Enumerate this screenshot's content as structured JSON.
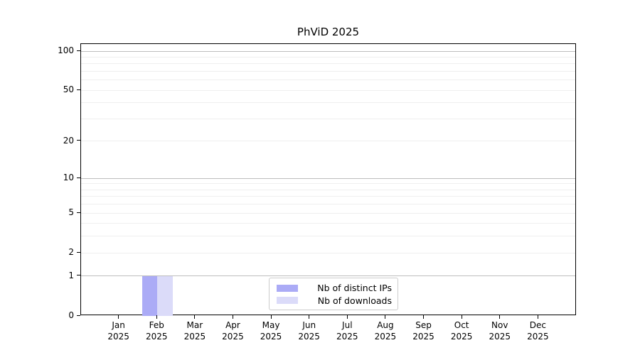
{
  "chart_data": {
    "type": "bar",
    "title": "PhViD 2025",
    "categories": [
      [
        "Jan",
        "2025"
      ],
      [
        "Feb",
        "2025"
      ],
      [
        "Mar",
        "2025"
      ],
      [
        "Apr",
        "2025"
      ],
      [
        "May",
        "2025"
      ],
      [
        "Jun",
        "2025"
      ],
      [
        "Jul",
        "2025"
      ],
      [
        "Aug",
        "2025"
      ],
      [
        "Sep",
        "2025"
      ],
      [
        "Oct",
        "2025"
      ],
      [
        "Nov",
        "2025"
      ],
      [
        "Dec",
        "2025"
      ]
    ],
    "series": [
      {
        "name": "Nb of distinct IPs",
        "color": "#ababf6",
        "values": [
          0,
          1,
          0,
          0,
          0,
          0,
          0,
          0,
          0,
          0,
          0,
          0
        ]
      },
      {
        "name": "Nb of downloads",
        "color": "#dbdbf9",
        "values": [
          0,
          1,
          0,
          0,
          0,
          0,
          0,
          0,
          0,
          0,
          0,
          0
        ]
      }
    ],
    "y_scale": "log1p",
    "ylim": [
      0,
      113
    ],
    "yticks": [
      0,
      1,
      2,
      5,
      10,
      20,
      50,
      100
    ],
    "grid": {
      "major": [
        1,
        10,
        100
      ],
      "minor": [
        2,
        3,
        4,
        5,
        6,
        7,
        8,
        9,
        20,
        30,
        40,
        50,
        60,
        70,
        80,
        90
      ]
    },
    "legend": {
      "position": "lower-center"
    },
    "colors": {
      "grid_major": "#bdbdbd",
      "grid_minor": "#efefef",
      "spine": "#000000",
      "text": "#000000",
      "legend_border": "#cccccc"
    }
  }
}
